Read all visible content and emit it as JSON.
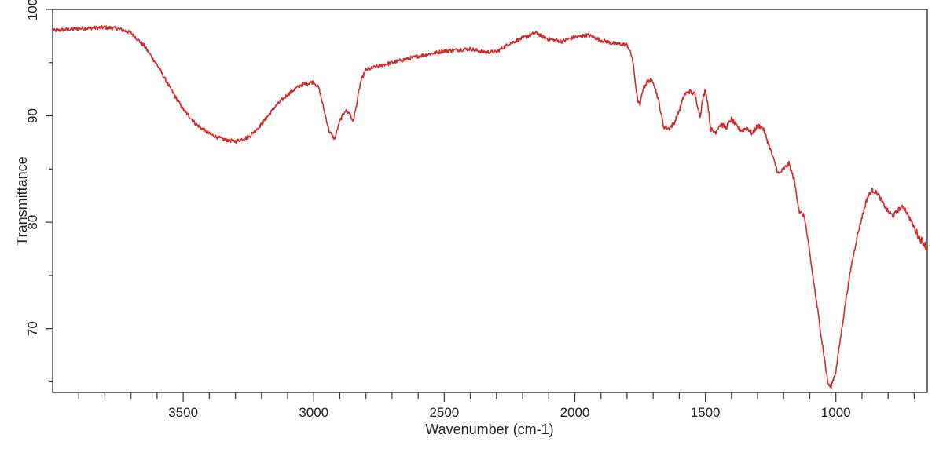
{
  "chart_data": {
    "type": "line",
    "title": "",
    "xlabel": "Wavenumber (cm-1)",
    "ylabel": "Transmittance",
    "xlim": [
      4000,
      650
    ],
    "ylim": [
      64,
      100
    ],
    "x_reversed": true,
    "grid": false,
    "x_tick_labels": [
      "3500",
      "3000",
      "2500",
      "2000",
      "1500",
      "1000"
    ],
    "x_tick_values": [
      3500,
      3000,
      2500,
      2000,
      1500,
      1000
    ],
    "x_minor_ticks": [
      3900,
      3800,
      3700,
      3600,
      3400,
      3300,
      3200,
      3100,
      2900,
      2800,
      2700,
      2600,
      2400,
      2300,
      2200,
      2100,
      1900,
      1800,
      1700,
      1600,
      1400,
      1300,
      1200,
      1100,
      900,
      800,
      700
    ],
    "y_tick_labels": [
      "100",
      "90",
      "80",
      "70"
    ],
    "y_tick_values": [
      100,
      90,
      80,
      70
    ],
    "y_minor_ticks": [
      95,
      85,
      75,
      65
    ],
    "colors": {
      "line": "#d42a2a",
      "axis": "#333333"
    },
    "series": [
      {
        "x": [
          4000,
          3900,
          3800,
          3750,
          3700,
          3650,
          3600,
          3550,
          3500,
          3450,
          3400,
          3350,
          3300,
          3250,
          3200,
          3150,
          3100,
          3050,
          3000,
          2980,
          2960,
          2940,
          2920,
          2900,
          2880,
          2860,
          2850,
          2840,
          2820,
          2800,
          2750,
          2700,
          2600,
          2500,
          2400,
          2350,
          2300,
          2250,
          2200,
          2150,
          2100,
          2050,
          2000,
          1950,
          1900,
          1850,
          1800,
          1780,
          1760,
          1750,
          1740,
          1720,
          1700,
          1680,
          1660,
          1640,
          1620,
          1600,
          1580,
          1560,
          1540,
          1520,
          1510,
          1500,
          1490,
          1480,
          1470,
          1460,
          1450,
          1440,
          1420,
          1400,
          1380,
          1360,
          1340,
          1320,
          1300,
          1280,
          1260,
          1240,
          1220,
          1200,
          1180,
          1160,
          1140,
          1120,
          1100,
          1080,
          1060,
          1040,
          1030,
          1020,
          1000,
          980,
          960,
          940,
          920,
          900,
          880,
          860,
          840,
          820,
          800,
          780,
          760,
          740,
          720,
          700,
          680,
          660,
          650
        ],
        "y": [
          98.0,
          98.2,
          98.3,
          98.2,
          97.8,
          96.6,
          94.8,
          92.6,
          90.6,
          89.2,
          88.3,
          87.8,
          87.6,
          88.0,
          89.2,
          90.8,
          92.0,
          92.9,
          93.2,
          92.6,
          90.5,
          88.5,
          87.8,
          89.5,
          90.5,
          90.2,
          89.4,
          90.5,
          93.2,
          94.3,
          94.7,
          95.0,
          95.6,
          96.1,
          96.3,
          96.0,
          96.0,
          96.8,
          97.3,
          97.8,
          97.2,
          97.0,
          97.4,
          97.6,
          97.1,
          96.8,
          96.7,
          95.5,
          91.5,
          91.0,
          92.5,
          93.3,
          93.3,
          91.5,
          89.0,
          88.8,
          89.3,
          90.5,
          92.0,
          92.3,
          92.0,
          90.0,
          91.5,
          92.5,
          91.0,
          88.8,
          88.5,
          88.5,
          89.0,
          89.2,
          88.9,
          89.7,
          89.0,
          88.6,
          88.9,
          88.3,
          89.1,
          88.9,
          87.5,
          86.0,
          84.5,
          85.0,
          85.5,
          84.0,
          81.0,
          80.5,
          77.0,
          73.5,
          70.0,
          66.5,
          64.8,
          64.5,
          66.0,
          69.5,
          73.0,
          76.0,
          78.5,
          80.5,
          82.3,
          83.0,
          82.7,
          81.8,
          81.0,
          80.6,
          81.2,
          81.5,
          80.5,
          79.5,
          78.5,
          78.0,
          77.3
        ]
      }
    ]
  }
}
